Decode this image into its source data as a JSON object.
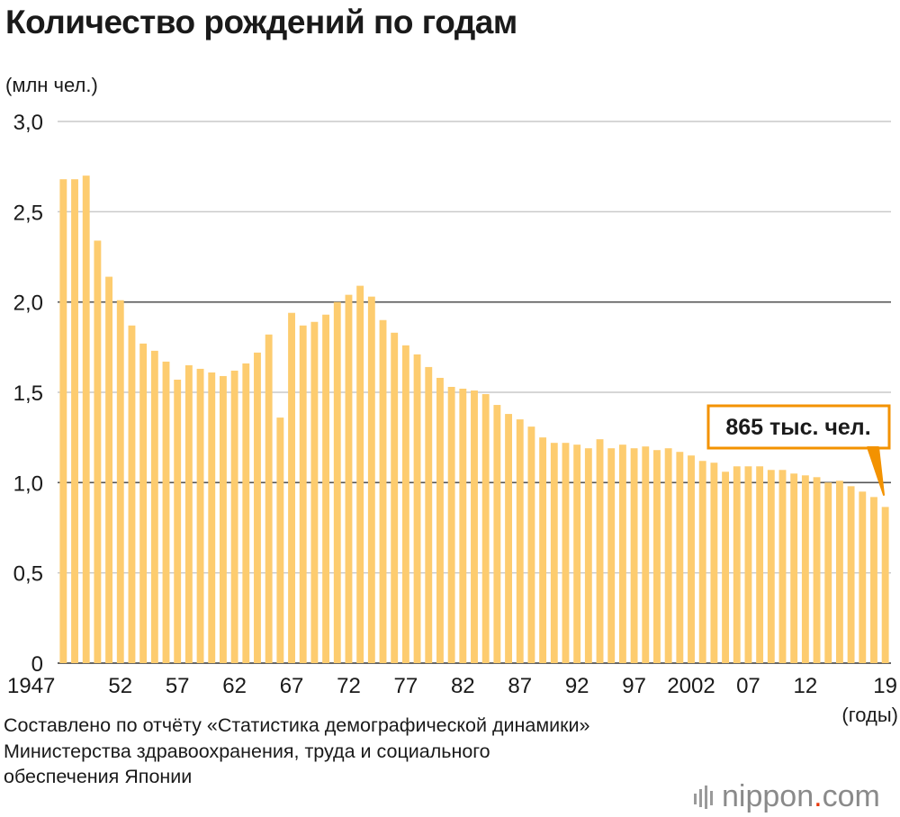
{
  "title": "Количество рождений по годам",
  "y_unit": "(млн чел.)",
  "x_unit": "(годы)",
  "source_lines": [
    "Составлено по отчёту «Статистика демографической динамики»",
    "Министерства здравоохранения, труда и социального",
    "обеспечения Японии"
  ],
  "logo": {
    "text": "nippon",
    "dot": ".",
    "suffix": "com"
  },
  "colors": {
    "bar": "#fdcc6f",
    "callout": "#f39200",
    "grid_light": "#c8c8c8",
    "grid_dark": "#555555"
  },
  "chart_data": {
    "type": "bar",
    "ylim": [
      0,
      3.0
    ],
    "yticks": [
      "0",
      "0,5",
      "1,0",
      "1,5",
      "2,0",
      "2,5",
      "3,0"
    ],
    "ytick_values": [
      0,
      0.5,
      1.0,
      1.5,
      2.0,
      2.5,
      3.0
    ],
    "x_tick_labels": [
      {
        "year": 1947,
        "label": "1947"
      },
      {
        "year": 1952,
        "label": "52"
      },
      {
        "year": 1957,
        "label": "57"
      },
      {
        "year": 1962,
        "label": "62"
      },
      {
        "year": 1967,
        "label": "67"
      },
      {
        "year": 1972,
        "label": "72"
      },
      {
        "year": 1977,
        "label": "77"
      },
      {
        "year": 1982,
        "label": "82"
      },
      {
        "year": 1987,
        "label": "87"
      },
      {
        "year": 1992,
        "label": "92"
      },
      {
        "year": 1997,
        "label": "97"
      },
      {
        "year": 2002,
        "label": "2002"
      },
      {
        "year": 2007,
        "label": "07"
      },
      {
        "year": 2012,
        "label": "12"
      },
      {
        "year": 2019,
        "label": "19"
      }
    ],
    "categories": [
      1947,
      1948,
      1949,
      1950,
      1951,
      1952,
      1953,
      1954,
      1955,
      1956,
      1957,
      1958,
      1959,
      1960,
      1961,
      1962,
      1963,
      1964,
      1965,
      1966,
      1967,
      1968,
      1969,
      1970,
      1971,
      1972,
      1973,
      1974,
      1975,
      1976,
      1977,
      1978,
      1979,
      1980,
      1981,
      1982,
      1983,
      1984,
      1985,
      1986,
      1987,
      1988,
      1989,
      1990,
      1991,
      1992,
      1993,
      1994,
      1995,
      1996,
      1997,
      1998,
      1999,
      2000,
      2001,
      2002,
      2003,
      2004,
      2005,
      2006,
      2007,
      2008,
      2009,
      2010,
      2011,
      2012,
      2013,
      2014,
      2015,
      2016,
      2017,
      2018,
      2019
    ],
    "values": [
      2.68,
      2.68,
      2.7,
      2.34,
      2.14,
      2.01,
      1.87,
      1.77,
      1.73,
      1.67,
      1.57,
      1.65,
      1.63,
      1.61,
      1.59,
      1.62,
      1.66,
      1.72,
      1.82,
      1.36,
      1.94,
      1.87,
      1.89,
      1.93,
      2.0,
      2.04,
      2.09,
      2.03,
      1.9,
      1.83,
      1.76,
      1.71,
      1.64,
      1.58,
      1.53,
      1.52,
      1.51,
      1.49,
      1.43,
      1.38,
      1.35,
      1.31,
      1.25,
      1.22,
      1.22,
      1.21,
      1.19,
      1.24,
      1.19,
      1.21,
      1.19,
      1.2,
      1.18,
      1.19,
      1.17,
      1.15,
      1.12,
      1.11,
      1.06,
      1.09,
      1.09,
      1.09,
      1.07,
      1.07,
      1.05,
      1.04,
      1.03,
      1.0,
      1.01,
      0.98,
      0.95,
      0.92,
      0.865
    ],
    "annotation": {
      "label": "865 тыс. чел.",
      "year": 2019
    }
  }
}
